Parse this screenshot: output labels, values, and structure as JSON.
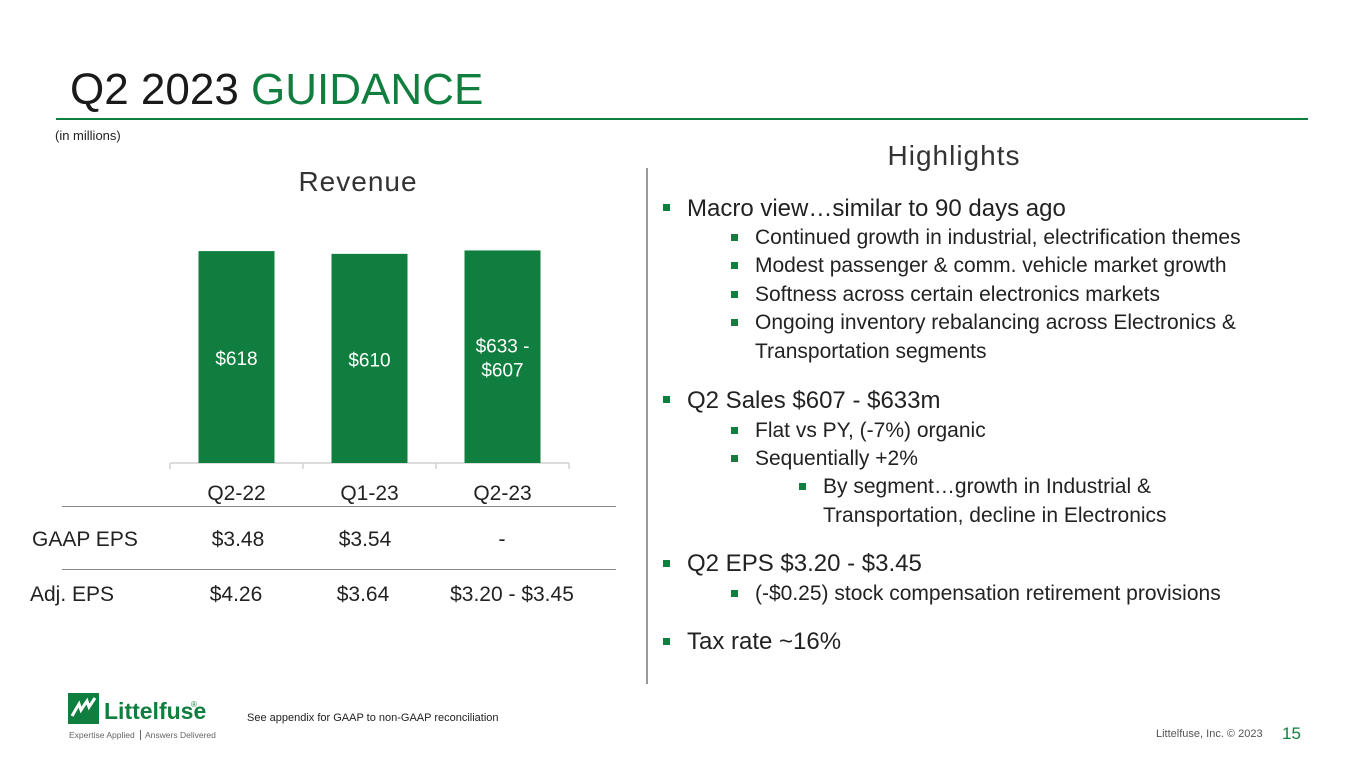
{
  "header": {
    "title_prefix": "Q2 2023",
    "title_accent": "GUIDANCE",
    "units_note": "(in millions)"
  },
  "chart_title": "Revenue",
  "chart_data": {
    "type": "bar",
    "title": "Revenue",
    "categories": [
      "Q2-22",
      "Q1-23",
      "Q2-23"
    ],
    "values": [
      618,
      610,
      620
    ],
    "labels": [
      "$618",
      "$610",
      "$633 - $607"
    ],
    "label_lines": [
      [
        "$618"
      ],
      [
        "$610"
      ],
      [
        "$633 -",
        "$607"
      ]
    ],
    "ylim": [
      0,
      700
    ],
    "xlabel": "",
    "ylabel": "",
    "color": "#107e3e"
  },
  "eps_table": {
    "rows": [
      {
        "label": "GAAP EPS",
        "values": [
          "$3.48",
          "$3.54",
          "-"
        ]
      },
      {
        "label": "Adj. EPS",
        "values": [
          "$4.26",
          "$3.64",
          "$3.20 - $3.45"
        ]
      }
    ]
  },
  "highlights": {
    "title": "Highlights",
    "lines": [
      "Macro view…similar to 90 days ago",
      "Continued growth in industrial, electrification themes",
      "Modest passenger & comm. vehicle market growth",
      "Softness across certain electronics markets",
      "Ongoing inventory rebalancing across Electronics &",
      "Transportation segments",
      "Q2 Sales $607 - $633m",
      "Flat vs PY, (-7%) organic",
      "Sequentially +2%",
      "By segment…growth in Industrial &",
      "Transportation, decline in Electronics",
      "Q2 EPS $3.20 - $3.45",
      "(-$0.25) stock compensation retirement provisions",
      "Tax rate ~16%"
    ]
  },
  "footer": {
    "logo_text": "Littelfuse",
    "logo_mark": "®",
    "logo_tagline_left": "Expertise Applied",
    "logo_tagline_right": "Answers Delivered",
    "footnote": "See appendix for GAAP to non-GAAP reconciliation",
    "copyright": "Littelfuse, Inc. © 2023",
    "page_number": "15"
  },
  "colors": {
    "brand_green": "#107e3e",
    "text": "#222222"
  }
}
